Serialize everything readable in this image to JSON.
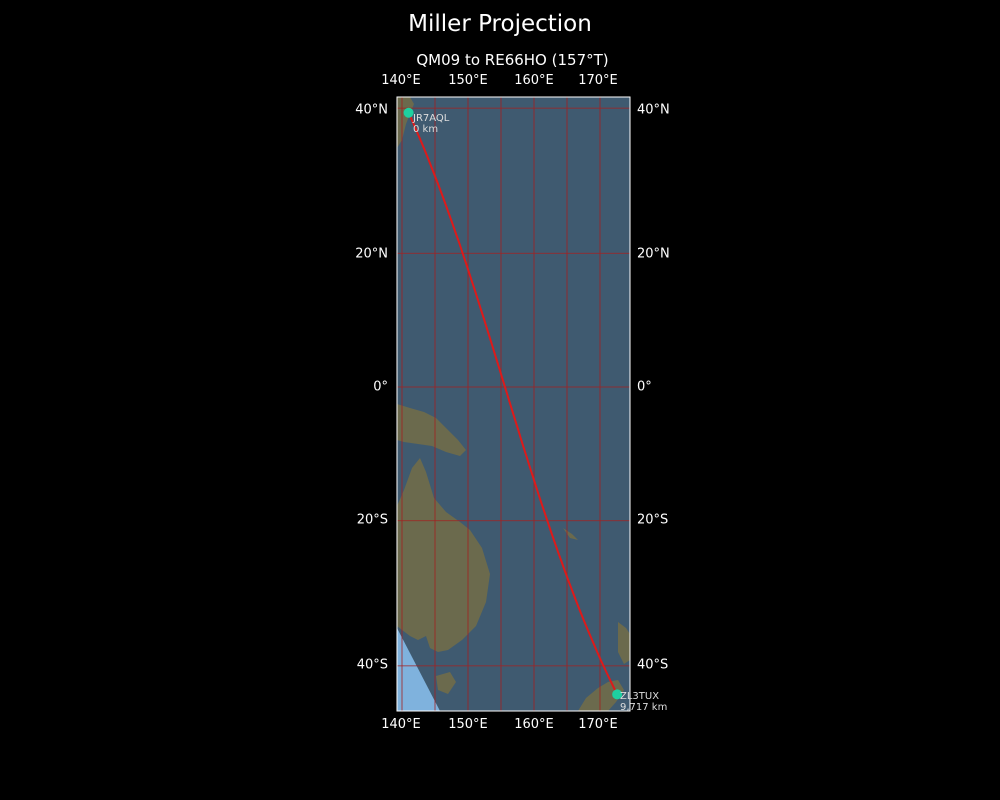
{
  "title": "Miller Projection",
  "subtitle": "QM09 to RE66HO (157°T)",
  "lon_ticks": [
    "140°E",
    "150°E",
    "160°E",
    "170°E"
  ],
  "lat_ticks": [
    "40°N",
    "20°N",
    "0°",
    "20°S",
    "40°S"
  ],
  "start_station": {
    "call": "JR7AQL",
    "distance": "0 km",
    "lat": 39.4,
    "lon": 141.0
  },
  "end_station": {
    "call": "ZL3TUX",
    "distance": "9,717 km",
    "lat": -43.6,
    "lon": 172.6
  },
  "colors": {
    "background": "#000000",
    "ocean": "#3f5a70",
    "land": "#6b6a4d",
    "path": "#dd1a1a",
    "graticule": "#a32020",
    "station_marker": "#1ed0a0",
    "station_label": "#dddddd"
  }
}
